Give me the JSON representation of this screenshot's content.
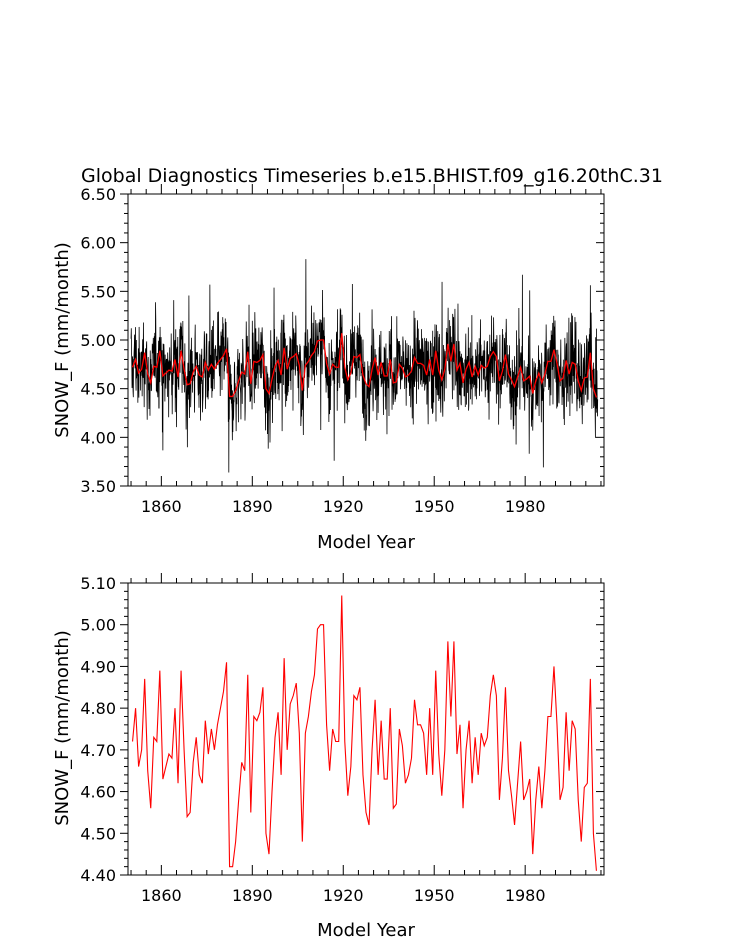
{
  "figure": {
    "title": "Global Diagnostics Timeseries b.e15.BHIST.f09_g16.20thC.31"
  },
  "colors": {
    "annual": "#ff0000",
    "monthly": "#000000",
    "axes": "#000000"
  },
  "chart_data": [
    {
      "type": "line",
      "xlabel": "Model Year",
      "ylabel": "SNOW_F (mm/month)",
      "xlim": [
        1849,
        2006
      ],
      "ylim": [
        3.5,
        6.5
      ],
      "xticks": [
        1860,
        1890,
        1920,
        1950,
        1980
      ],
      "yticks": [
        3.5,
        4.0,
        4.5,
        5.0,
        5.5,
        6.0,
        6.5
      ],
      "ytick_labels": [
        "3.50",
        "4.00",
        "4.50",
        "5.00",
        "5.50",
        "6.00",
        "6.50"
      ],
      "series": [
        {
          "color": "#000000",
          "resolution": "monthly",
          "approx_mean": 4.73,
          "approx_range": [
            3.55,
            6.02
          ]
        },
        {
          "color": "#ff0000",
          "resolution": "annual",
          "source": "same annual values as lower panel"
        }
      ]
    },
    {
      "type": "line",
      "xlabel": "Model Year",
      "ylabel": "SNOW_F (mm/month)",
      "xlim": [
        1849,
        2006
      ],
      "ylim": [
        4.4,
        5.1
      ],
      "xticks": [
        1860,
        1890,
        1920,
        1950,
        1980
      ],
      "yticks": [
        4.4,
        4.5,
        4.6,
        4.7,
        4.8,
        4.9,
        5.0,
        5.1
      ],
      "ytick_labels": [
        "4.40",
        "4.50",
        "4.60",
        "4.70",
        "4.80",
        "4.90",
        "5.00",
        "5.10"
      ],
      "series": [
        {
          "color": "#ff0000",
          "x_start": 1850,
          "x_step": 1,
          "values": [
            4.72,
            4.8,
            4.66,
            4.7,
            4.87,
            4.65,
            4.56,
            4.73,
            4.72,
            4.89,
            4.63,
            4.66,
            4.69,
            4.68,
            4.8,
            4.62,
            4.89,
            4.7,
            4.54,
            4.55,
            4.67,
            4.73,
            4.64,
            4.62,
            4.77,
            4.69,
            4.75,
            4.7,
            4.76,
            4.8,
            4.84,
            4.91,
            4.42,
            4.42,
            4.48,
            4.58,
            4.67,
            4.65,
            4.88,
            4.55,
            4.78,
            4.77,
            4.79,
            4.85,
            4.5,
            4.45,
            4.6,
            4.73,
            4.79,
            4.64,
            4.92,
            4.7,
            4.81,
            4.83,
            4.86,
            4.74,
            4.48,
            4.74,
            4.78,
            4.84,
            4.88,
            4.99,
            5.0,
            5.0,
            4.76,
            4.65,
            4.75,
            4.72,
            4.72,
            5.07,
            4.72,
            4.59,
            4.66,
            4.83,
            4.82,
            4.85,
            4.64,
            4.55,
            4.52,
            4.7,
            4.82,
            4.64,
            4.77,
            4.63,
            4.63,
            4.8,
            4.56,
            4.57,
            4.75,
            4.71,
            4.62,
            4.64,
            4.68,
            4.82,
            4.76,
            4.76,
            4.74,
            4.64,
            4.8,
            4.64,
            4.89,
            4.69,
            4.59,
            4.7,
            4.96,
            4.78,
            4.96,
            4.69,
            4.76,
            4.56,
            4.7,
            4.77,
            4.62,
            4.73,
            4.64,
            4.74,
            4.71,
            4.73,
            4.83,
            4.88,
            4.83,
            4.58,
            4.68,
            4.85,
            4.65,
            4.59,
            4.52,
            4.62,
            4.72,
            4.58,
            4.6,
            4.63,
            4.45,
            4.58,
            4.66,
            4.56,
            4.65,
            4.78,
            4.78,
            4.9,
            4.76,
            4.58,
            4.61,
            4.79,
            4.65,
            4.77,
            4.75,
            4.58,
            4.48,
            4.61,
            4.62,
            4.87,
            4.5,
            4.41
          ]
        }
      ]
    }
  ]
}
